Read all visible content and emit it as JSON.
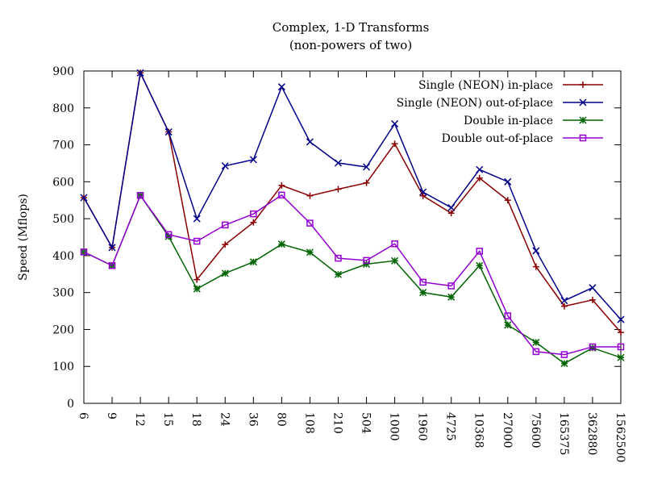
{
  "chart_data": {
    "type": "line",
    "title": "Complex, 1-D Transforms",
    "subtitle": "(non-powers of two)",
    "xlabel": "",
    "ylabel": "Speed (Mflops)",
    "ylim": [
      0,
      900
    ],
    "yticks": [
      0,
      100,
      200,
      300,
      400,
      500,
      600,
      700,
      800,
      900
    ],
    "grid": false,
    "legend_position": "top-right",
    "categories": [
      "6",
      "9",
      "12",
      "15",
      "18",
      "24",
      "36",
      "80",
      "108",
      "210",
      "504",
      "1000",
      "1960",
      "4725",
      "10368",
      "27000",
      "75600",
      "165375",
      "362880",
      "1562500"
    ],
    "series": [
      {
        "name": "Single (NEON) in-place",
        "color": "#8b0000",
        "marker": "plus",
        "values": [
          557,
          422,
          895,
          735,
          335,
          430,
          490,
          590,
          562,
          580,
          597,
          703,
          562,
          515,
          610,
          550,
          370,
          263,
          280,
          192
        ]
      },
      {
        "name": "Single (NEON) out-of-place",
        "color": "#00008b",
        "marker": "cross",
        "values": [
          557,
          422,
          895,
          735,
          500,
          643,
          660,
          857,
          708,
          651,
          640,
          757,
          572,
          530,
          633,
          600,
          413,
          278,
          313,
          227
        ]
      },
      {
        "name": "Double in-place",
        "color": "#006400",
        "marker": "star",
        "values": [
          410,
          373,
          563,
          452,
          310,
          352,
          383,
          431,
          409,
          349,
          377,
          386,
          300,
          288,
          373,
          212,
          165,
          108,
          150,
          124
        ]
      },
      {
        "name": "Double out-of-place",
        "color": "#9400d3",
        "marker": "square",
        "values": [
          410,
          373,
          563,
          457,
          439,
          483,
          513,
          564,
          488,
          393,
          387,
          432,
          328,
          318,
          412,
          237,
          140,
          132,
          153,
          153
        ]
      }
    ]
  }
}
